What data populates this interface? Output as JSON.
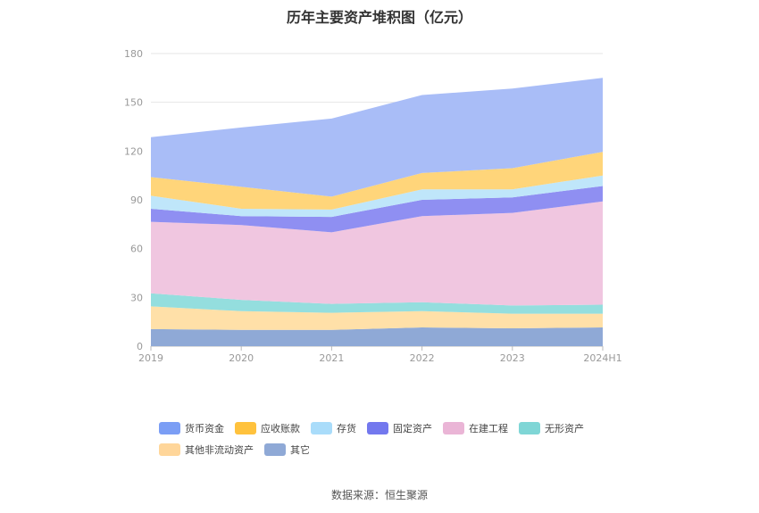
{
  "chart_data": {
    "type": "area",
    "stacked": true,
    "title": "历年主要资产堆积图（亿元）",
    "categories": [
      "2019",
      "2020",
      "2021",
      "2022",
      "2023",
      "2024H1"
    ],
    "ylim": [
      0,
      180
    ],
    "yticks": [
      0,
      30,
      60,
      90,
      120,
      150,
      180
    ],
    "grid": true,
    "legend_position": "bottom",
    "series": [
      {
        "name": "其它",
        "color": "#8fa9d6",
        "values": [
          10.5,
          10.0,
          10.0,
          11.5,
          11.0,
          11.5
        ]
      },
      {
        "name": "其他非流动资产",
        "color": "#ffe0a8",
        "values": [
          14.0,
          11.5,
          10.5,
          10.0,
          9.0,
          8.5
        ]
      },
      {
        "name": "无形资产",
        "color": "#94dede",
        "values": [
          8.0,
          7.0,
          5.5,
          5.5,
          5.0,
          5.5
        ]
      },
      {
        "name": "在建工程",
        "color": "#f0c6e0",
        "values": [
          44.0,
          46.0,
          44.0,
          53.0,
          57.0,
          63.5
        ]
      },
      {
        "name": "固定资产",
        "color": "#8f8ff2",
        "values": [
          8.0,
          5.5,
          9.5,
          10.0,
          9.5,
          9.5
        ]
      },
      {
        "name": "存货",
        "color": "#bfe6fa",
        "values": [
          8.0,
          4.5,
          4.5,
          6.5,
          5.0,
          6.5
        ]
      },
      {
        "name": "应收账款",
        "color": "#ffd57a",
        "values": [
          11.5,
          13.5,
          8.0,
          10.0,
          13.0,
          14.5
        ]
      },
      {
        "name": "货币资金",
        "color": "#a9bdf7",
        "values": [
          24.5,
          36.5,
          48.0,
          48.0,
          49.0,
          45.5
        ]
      }
    ]
  },
  "legend": {
    "items": [
      "货币资金",
      "应收账款",
      "存货",
      "固定资产",
      "在建工程",
      "无形资产",
      "其他非流动资产",
      "其它"
    ],
    "colors": [
      "#7b9ef5",
      "#ffc23d",
      "#a9dcfa",
      "#7378ee",
      "#eab5d6",
      "#7fd6d6",
      "#ffd69a",
      "#8fa9d6"
    ]
  },
  "source": "数据来源：恒生聚源"
}
